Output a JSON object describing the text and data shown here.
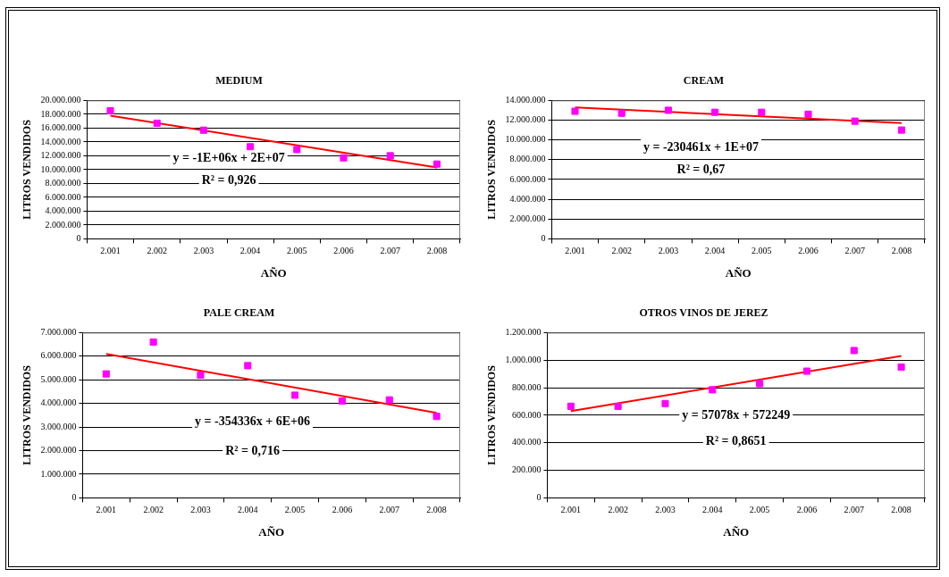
{
  "chart_data": [
    {
      "type": "scatter",
      "title": "MEDIUM",
      "xlabel": "AÑO",
      "ylabel": "LITROS VENDIDOS",
      "categories": [
        "2.001",
        "2.002",
        "2.003",
        "2.004",
        "2.005",
        "2.006",
        "2.007",
        "2.008"
      ],
      "ylim": [
        0,
        20000000
      ],
      "yticks": [
        {
          "value": 0,
          "label": "0"
        },
        {
          "value": 2000000,
          "label": "2.000.000"
        },
        {
          "value": 4000000,
          "label": "4.000.000"
        },
        {
          "value": 6000000,
          "label": "6.000.000"
        },
        {
          "value": 8000000,
          "label": "8.000.000"
        },
        {
          "value": 10000000,
          "label": "10.000.000"
        },
        {
          "value": 12000000,
          "label": "12.000.000"
        },
        {
          "value": 14000000,
          "label": "14.000.000"
        },
        {
          "value": 16000000,
          "label": "16.000.000"
        },
        {
          "value": 18000000,
          "label": "18.000.000"
        },
        {
          "value": 20000000,
          "label": "20.000.000"
        }
      ],
      "grid": "y",
      "legend": false,
      "annotations": [
        "y = -1E+06x + 2E+07",
        "R² = 0,926"
      ],
      "series": [
        {
          "marker": "square",
          "color": "#ff00ff",
          "values": [
            18500000,
            16700000,
            15700000,
            13300000,
            12900000,
            11700000,
            12000000,
            10800000
          ]
        },
        {
          "type": "line",
          "marker": "none",
          "color": "#ff0000",
          "x": [
            "2.001",
            "2.008"
          ],
          "values": [
            17800000,
            10300000
          ]
        }
      ]
    },
    {
      "type": "scatter",
      "title": "CREAM",
      "xlabel": "AÑO",
      "ylabel": "LITROS VENDIDOS",
      "categories": [
        "2.001",
        "2.002",
        "2.003",
        "2.004",
        "2.005",
        "2.006",
        "2.007",
        "2.008"
      ],
      "ylim": [
        0,
        14000000
      ],
      "yticks": [
        {
          "value": 0,
          "label": "0"
        },
        {
          "value": 2000000,
          "label": "2.000.000"
        },
        {
          "value": 4000000,
          "label": "4.000.000"
        },
        {
          "value": 6000000,
          "label": "6.000.000"
        },
        {
          "value": 8000000,
          "label": "8.000.000"
        },
        {
          "value": 10000000,
          "label": "10.000.000"
        },
        {
          "value": 12000000,
          "label": "12.000.000"
        },
        {
          "value": 14000000,
          "label": "14.000.000"
        }
      ],
      "grid": "y",
      "legend": false,
      "annotations": [
        "y = -230461x + 1E+07",
        "R² = 0,67"
      ],
      "series": [
        {
          "marker": "square",
          "color": "#ff00ff",
          "values": [
            12900000,
            12700000,
            13000000,
            12800000,
            12800000,
            12600000,
            11900000,
            11000000
          ]
        },
        {
          "type": "line",
          "marker": "none",
          "color": "#ff0000",
          "x": [
            "2.001",
            "2.008"
          ],
          "values": [
            13300000,
            11700000
          ]
        }
      ]
    },
    {
      "type": "scatter",
      "title": "PALE CREAM",
      "xlabel": "AÑO",
      "ylabel": "LITROS VENDIDOS",
      "categories": [
        "2.001",
        "2.002",
        "2.003",
        "2.004",
        "2.005",
        "2.006",
        "2.007",
        "2.008"
      ],
      "ylim": [
        0,
        7000000
      ],
      "yticks": [
        {
          "value": 0,
          "label": "0"
        },
        {
          "value": 1000000,
          "label": "1.000.000"
        },
        {
          "value": 2000000,
          "label": "2.000.000"
        },
        {
          "value": 3000000,
          "label": "3.000.000"
        },
        {
          "value": 4000000,
          "label": "4.000.000"
        },
        {
          "value": 5000000,
          "label": "5.000.000"
        },
        {
          "value": 6000000,
          "label": "6.000.000"
        },
        {
          "value": 7000000,
          "label": "7.000.000"
        }
      ],
      "grid": "y",
      "legend": false,
      "annotations": [
        "y = -354336x + 6E+06",
        "R² = 0,716"
      ],
      "series": [
        {
          "marker": "square",
          "color": "#ff00ff",
          "values": [
            5250000,
            6600000,
            5200000,
            5600000,
            4350000,
            4100000,
            4150000,
            3450000
          ]
        },
        {
          "type": "line",
          "marker": "none",
          "color": "#ff0000",
          "x": [
            "2.001",
            "2.008"
          ],
          "values": [
            6100000,
            3600000
          ]
        }
      ]
    },
    {
      "type": "scatter",
      "title": "OTROS VINOS DE JEREZ",
      "xlabel": "AÑO",
      "ylabel": "LITROS VENDIDOS",
      "categories": [
        "2.001",
        "2.002",
        "2.003",
        "2.004",
        "2.005",
        "2.006",
        "2.007",
        "2.008"
      ],
      "ylim": [
        0,
        1200000
      ],
      "yticks": [
        {
          "value": 0,
          "label": "0"
        },
        {
          "value": 200000,
          "label": "200.000"
        },
        {
          "value": 400000,
          "label": "400.000"
        },
        {
          "value": 600000,
          "label": "600.000"
        },
        {
          "value": 800000,
          "label": "800.000"
        },
        {
          "value": 1000000,
          "label": "1.000.000"
        },
        {
          "value": 1200000,
          "label": "1.200.000"
        }
      ],
      "grid": "y",
      "legend": false,
      "annotations": [
        "y = 57078x + 572249",
        "R² = 0,8651"
      ],
      "series": [
        {
          "marker": "square",
          "color": "#ff00ff",
          "values": [
            665000,
            665000,
            685000,
            785000,
            830000,
            920000,
            1070000,
            950000
          ]
        },
        {
          "type": "line",
          "marker": "none",
          "color": "#ff0000",
          "x": [
            "2.001",
            "2.008"
          ],
          "values": [
            630000,
            1030000
          ]
        }
      ]
    }
  ]
}
